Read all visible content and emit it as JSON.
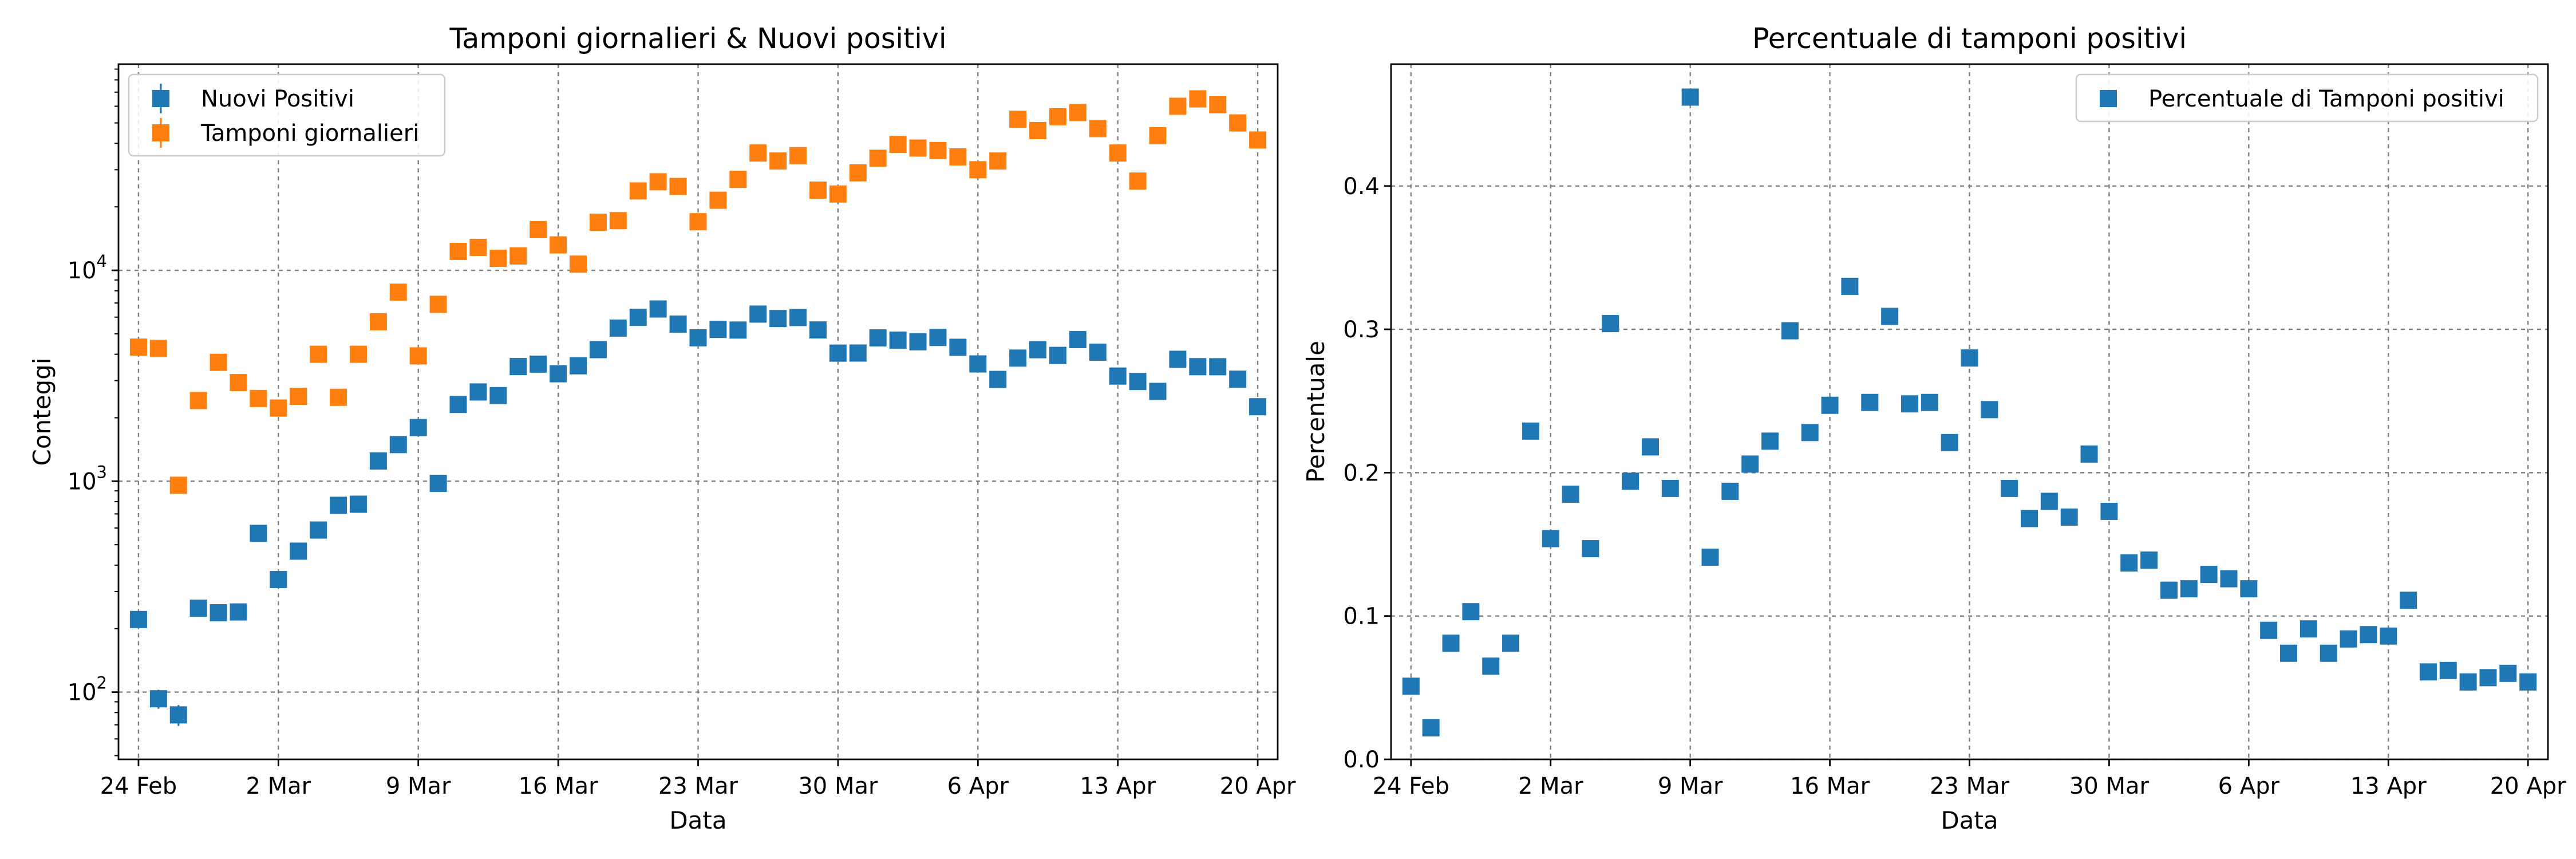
{
  "colors": {
    "positivi": "#1f77b4",
    "tamponi": "#ff7f0e",
    "grid": "#808080"
  },
  "chart_data": [
    {
      "type": "scatter",
      "title": "Tamponi giornalieri & Nuovi positivi",
      "xlabel": "Data",
      "ylabel": "Conteggi",
      "yscale": "log",
      "xlim": [
        "2020-02-23",
        "2020-04-21"
      ],
      "ylim": [
        48,
        95000
      ],
      "grid": true,
      "legend_position": "upper-left",
      "x_ticks": [
        {
          "date": "2020-02-24",
          "label": "24 Feb"
        },
        {
          "date": "2020-03-02",
          "label": "2 Mar"
        },
        {
          "date": "2020-03-09",
          "label": "9 Mar"
        },
        {
          "date": "2020-03-16",
          "label": "16 Mar"
        },
        {
          "date": "2020-03-23",
          "label": "23 Mar"
        },
        {
          "date": "2020-03-30",
          "label": "30 Mar"
        },
        {
          "date": "2020-04-06",
          "label": "6 Apr"
        },
        {
          "date": "2020-04-13",
          "label": "13 Apr"
        },
        {
          "date": "2020-04-20",
          "label": "20 Apr"
        }
      ],
      "y_ticks": [
        {
          "value": 100,
          "base": "10",
          "exp": "2"
        },
        {
          "value": 1000,
          "base": "10",
          "exp": "3"
        },
        {
          "value": 10000,
          "base": "10",
          "exp": "4"
        }
      ],
      "series": [
        {
          "name": "Nuovi Positivi",
          "color": "#1f77b4",
          "marker": "square",
          "error_bars": true,
          "start_date": "2020-02-24",
          "values": [
            221,
            93,
            78,
            250,
            238,
            240,
            566,
            342,
            466,
            587,
            769,
            778,
            1247,
            1492,
            1797,
            977,
            2313,
            2651,
            2547,
            3497,
            3590,
            3233,
            3526,
            4207,
            5322,
            5986,
            6557,
            5560,
            4789,
            5249,
            5210,
            6203,
            5909,
            5974,
            5217,
            4050,
            4053,
            4782,
            4668,
            4585,
            4805,
            4316,
            3599,
            3039,
            3836,
            4204,
            3951,
            4694,
            4092,
            3153,
            2972,
            2667,
            3786,
            3493,
            3491,
            3047,
            2256
          ]
        },
        {
          "name": "Tamponi giornalieri",
          "color": "#ff7f0e",
          "marker": "square",
          "error_bars": true,
          "start_date": "2020-02-24",
          "values": [
            4324,
            4260,
            957,
            2413,
            3662,
            2936,
            2468,
            2223,
            2528,
            4000,
            2500,
            4000,
            5703,
            7875,
            3930,
            6900,
            12300,
            12850,
            11400,
            11700,
            15600,
            13200,
            10700,
            16900,
            17200,
            23800,
            26300,
            25000,
            17000,
            21500,
            27000,
            36000,
            33000,
            35000,
            24000,
            23000,
            29000,
            34000,
            39600,
            38000,
            37000,
            34500,
            30000,
            33000,
            52000,
            46000,
            53500,
            56000,
            47000,
            36000,
            26500,
            43500,
            60000,
            65000,
            61000,
            50000,
            41500
          ]
        }
      ]
    },
    {
      "type": "scatter",
      "title": "Percentuale di tamponi positivi",
      "xlabel": "Data",
      "ylabel": "Percentuale",
      "yscale": "linear",
      "xlim": [
        "2020-02-23",
        "2020-04-21"
      ],
      "ylim": [
        0,
        0.485
      ],
      "grid": true,
      "legend_position": "upper-right",
      "x_ticks": [
        {
          "date": "2020-02-24",
          "label": "24 Feb"
        },
        {
          "date": "2020-03-02",
          "label": "2 Mar"
        },
        {
          "date": "2020-03-09",
          "label": "9 Mar"
        },
        {
          "date": "2020-03-16",
          "label": "16 Mar"
        },
        {
          "date": "2020-03-23",
          "label": "23 Mar"
        },
        {
          "date": "2020-03-30",
          "label": "30 Mar"
        },
        {
          "date": "2020-04-06",
          "label": "6 Apr"
        },
        {
          "date": "2020-04-13",
          "label": "13 Apr"
        },
        {
          "date": "2020-04-20",
          "label": "20 Apr"
        }
      ],
      "y_ticks": [
        {
          "value": 0.0,
          "label": "0.0"
        },
        {
          "value": 0.1,
          "label": "0.1"
        },
        {
          "value": 0.2,
          "label": "0.2"
        },
        {
          "value": 0.3,
          "label": "0.3"
        },
        {
          "value": 0.4,
          "label": "0.4"
        }
      ],
      "series": [
        {
          "name": "Percentuale di Tamponi positivi",
          "color": "#1f77b4",
          "marker": "square",
          "start_date": "2020-02-24",
          "values": [
            0.051,
            0.022,
            0.081,
            0.103,
            0.065,
            0.081,
            0.229,
            0.154,
            0.185,
            0.147,
            0.304,
            0.194,
            0.218,
            0.189,
            0.462,
            0.141,
            0.187,
            0.206,
            0.222,
            0.299,
            0.228,
            0.247,
            0.33,
            0.249,
            0.309,
            0.248,
            0.249,
            0.221,
            0.28,
            0.244,
            0.189,
            0.168,
            0.18,
            0.169,
            0.213,
            0.173,
            0.137,
            0.139,
            0.118,
            0.119,
            0.129,
            0.126,
            0.119,
            0.09,
            0.074,
            0.091,
            0.074,
            0.084,
            0.087,
            0.086,
            0.111,
            0.061,
            0.062,
            0.054,
            0.057,
            0.06,
            0.054
          ]
        }
      ]
    }
  ]
}
